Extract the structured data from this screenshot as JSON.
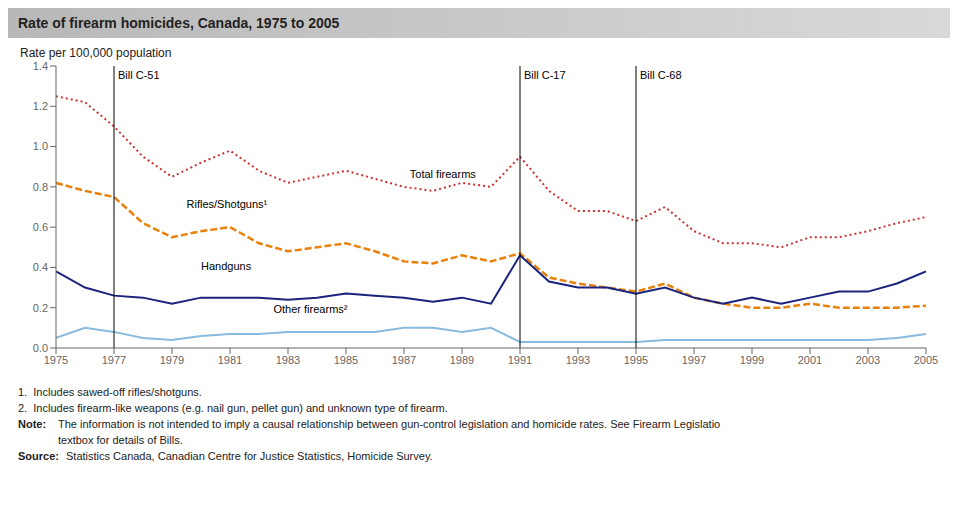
{
  "chart_data": {
    "type": "line",
    "title": "Rate of firearm homicides, Canada, 1975 to 2005",
    "ylabel": "Rate per 100,000 population",
    "x": [
      1975,
      1976,
      1977,
      1978,
      1979,
      1980,
      1981,
      1982,
      1983,
      1984,
      1985,
      1986,
      1987,
      1988,
      1989,
      1990,
      1991,
      1992,
      1993,
      1994,
      1995,
      1996,
      1997,
      1998,
      1999,
      2000,
      2001,
      2002,
      2003,
      2004,
      2005
    ],
    "xlim": [
      1975,
      2005
    ],
    "xticks": [
      1975,
      1977,
      1979,
      1981,
      1983,
      1985,
      1987,
      1989,
      1991,
      1993,
      1995,
      1997,
      1999,
      2001,
      2003,
      2005
    ],
    "ylim": [
      0,
      1.4
    ],
    "yticks": [
      {
        "value": 0,
        "label": "0.0"
      },
      0.2,
      0.4,
      0.6,
      0.8,
      {
        "value": 1,
        "label": "1.0"
      },
      1.2,
      1.4
    ],
    "grid": false,
    "series": [
      {
        "color": "#cc3333",
        "line_style": "dotted",
        "values": [
          1.25,
          1.22,
          1.1,
          0.95,
          0.85,
          0.92,
          0.98,
          0.88,
          0.82,
          0.85,
          0.88,
          0.84,
          0.8,
          0.78,
          0.82,
          0.8,
          0.95,
          0.78,
          0.68,
          0.68,
          0.63,
          0.7,
          0.58,
          0.52,
          0.52,
          0.5,
          0.55,
          0.55,
          0.58,
          0.62,
          0.65
        ]
      },
      {
        "color": "#e8820a",
        "line_style": "dashed",
        "values": [
          0.82,
          0.78,
          0.75,
          0.62,
          0.55,
          0.58,
          0.6,
          0.52,
          0.48,
          0.5,
          0.52,
          0.48,
          0.43,
          0.42,
          0.46,
          0.43,
          0.47,
          0.35,
          0.32,
          0.3,
          0.28,
          0.32,
          0.25,
          0.22,
          0.2,
          0.2,
          0.22,
          0.2,
          0.2,
          0.2,
          0.21
        ]
      },
      {
        "color": "#1a237e",
        "line_style": "solid",
        "values": [
          0.38,
          0.3,
          0.26,
          0.25,
          0.22,
          0.25,
          0.25,
          0.25,
          0.24,
          0.25,
          0.27,
          0.26,
          0.25,
          0.23,
          0.25,
          0.22,
          0.46,
          0.33,
          0.3,
          0.3,
          0.27,
          0.3,
          0.25,
          0.22,
          0.25,
          0.22,
          0.25,
          0.28,
          0.28,
          0.32,
          0.38
        ]
      },
      {
        "color": "#88bbdd",
        "line_style": "solid",
        "values": [
          0.05,
          0.1,
          0.08,
          0.05,
          0.04,
          0.06,
          0.07,
          0.07,
          0.08,
          0.08,
          0.08,
          0.08,
          0.1,
          0.1,
          0.08,
          0.1,
          0.03,
          0.03,
          0.03,
          0.03,
          0.03,
          0.04,
          0.04,
          0.04,
          0.04,
          0.04,
          0.04,
          0.04,
          0.04,
          0.05,
          0.07
        ]
      }
    ],
    "vlines": [
      {
        "x": 1977,
        "label": "Bill C-51"
      },
      {
        "x": 1991,
        "label": "Bill C-17"
      },
      {
        "x": 1995,
        "label": "Bill C-68"
      }
    ],
    "annotations": [
      {
        "text": "Total firearms",
        "x": 1987.2,
        "y": 0.845
      },
      {
        "text": "Rifles/Shotguns¹",
        "x": 1979.5,
        "y": 0.695
      },
      {
        "text": "Handguns",
        "x": 1980.0,
        "y": 0.385
      },
      {
        "text": "Other firearms²",
        "x": 1982.5,
        "y": 0.175
      }
    ],
    "notes": [
      "1.  Includes sawed-off rifles/shotguns.",
      "2.  Includes firearm-like weapons (e.g. nail gun, pellet gun) and unknown type of firearm."
    ],
    "note": {
      "label": "Note:",
      "lines": [
        "The information is not intended to imply a causal relationship between gun-control legislation and homicide rates. See Firearm Legislatio",
        "textbox for details of Bills."
      ]
    },
    "source": {
      "label": "Source:",
      "text": "Statistics Canada, Canadian Centre for Justice Statistics, Homicide Survey."
    }
  }
}
